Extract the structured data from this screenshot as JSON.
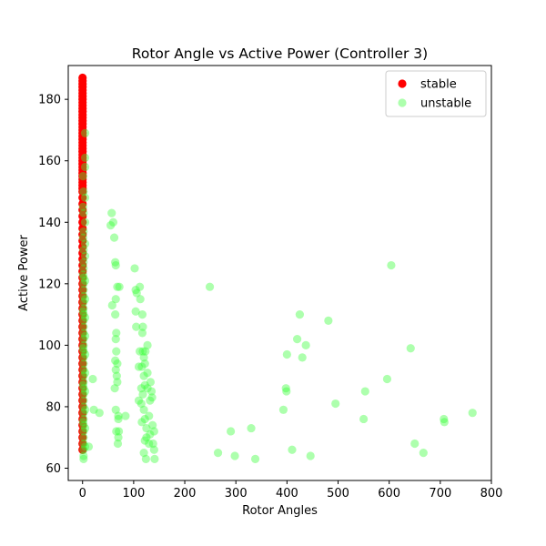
{
  "chart_data": {
    "type": "scatter",
    "title": "Rotor Angle vs Active Power (Controller 3)",
    "xlabel": "Rotor Angles",
    "ylabel": "Active Power",
    "xlim": [
      -28,
      800
    ],
    "ylim": [
      56,
      191
    ],
    "xticks": [
      0,
      100,
      200,
      300,
      400,
      500,
      600,
      700,
      800
    ],
    "yticks": [
      60,
      80,
      100,
      120,
      140,
      160,
      180
    ],
    "grid": false,
    "legend_position": "top-right",
    "series": [
      {
        "name": "stable",
        "color": "#ff0000",
        "alpha": 1.0,
        "points": [
          [
            0,
            187
          ],
          [
            0,
            186
          ],
          [
            0,
            185
          ],
          [
            0,
            184
          ],
          [
            0,
            183
          ],
          [
            0,
            182
          ],
          [
            0,
            181
          ],
          [
            0,
            180
          ],
          [
            0,
            179
          ],
          [
            0,
            178
          ],
          [
            0,
            177
          ],
          [
            0,
            176
          ],
          [
            0,
            175
          ],
          [
            0,
            174
          ],
          [
            0,
            173
          ],
          [
            0,
            172
          ],
          [
            0,
            171
          ],
          [
            0,
            170
          ],
          [
            0,
            169
          ],
          [
            0,
            168
          ],
          [
            0,
            167
          ],
          [
            0,
            166
          ],
          [
            0,
            165
          ],
          [
            0,
            164
          ],
          [
            0,
            163
          ],
          [
            0,
            162
          ],
          [
            0,
            161
          ],
          [
            0,
            160
          ],
          [
            0,
            159
          ],
          [
            0,
            158
          ],
          [
            0,
            157
          ],
          [
            0,
            156
          ],
          [
            0,
            155
          ],
          [
            0,
            154
          ],
          [
            0,
            153
          ],
          [
            0,
            152
          ],
          [
            0,
            151
          ],
          [
            0,
            150
          ],
          [
            0,
            148
          ],
          [
            0,
            146
          ],
          [
            0,
            144
          ],
          [
            0,
            142
          ],
          [
            0,
            140
          ],
          [
            0,
            138
          ],
          [
            0,
            136
          ],
          [
            0,
            134
          ],
          [
            0,
            132
          ],
          [
            0,
            130
          ],
          [
            0,
            128
          ],
          [
            0,
            126
          ],
          [
            0,
            124
          ],
          [
            0,
            122
          ],
          [
            0,
            120
          ],
          [
            0,
            118
          ],
          [
            0,
            116
          ],
          [
            0,
            114
          ],
          [
            0,
            112
          ],
          [
            0,
            110
          ],
          [
            0,
            108
          ],
          [
            0,
            106
          ],
          [
            0,
            104
          ],
          [
            0,
            102
          ],
          [
            0,
            100
          ],
          [
            0,
            98
          ],
          [
            0,
            96
          ],
          [
            0,
            94
          ],
          [
            0,
            92
          ],
          [
            0,
            90
          ],
          [
            0,
            88
          ],
          [
            0,
            86
          ],
          [
            0,
            84
          ],
          [
            0,
            82
          ],
          [
            0,
            80
          ],
          [
            0,
            78
          ],
          [
            0,
            76
          ],
          [
            0,
            74
          ],
          [
            0,
            72
          ],
          [
            0,
            70
          ],
          [
            0,
            68
          ],
          [
            0,
            66
          ]
        ]
      },
      {
        "name": "unstable",
        "color": "#33ff33",
        "alpha": 0.4,
        "points": [
          [
            2,
            150
          ],
          [
            2,
            143
          ],
          [
            2,
            137
          ],
          [
            2,
            131
          ],
          [
            2,
            127
          ],
          [
            2,
            125
          ],
          [
            2,
            122
          ],
          [
            2,
            120
          ],
          [
            2,
            118
          ],
          [
            2,
            116
          ],
          [
            2,
            114
          ],
          [
            2,
            112
          ],
          [
            2,
            110
          ],
          [
            2,
            108
          ],
          [
            2,
            106
          ],
          [
            2,
            104
          ],
          [
            2,
            102
          ],
          [
            2,
            100
          ],
          [
            2,
            98
          ],
          [
            2,
            96
          ],
          [
            2,
            94
          ],
          [
            2,
            92
          ],
          [
            2,
            90
          ],
          [
            2,
            88
          ],
          [
            2,
            86
          ],
          [
            2,
            84
          ],
          [
            2,
            82
          ],
          [
            2,
            80
          ],
          [
            2,
            78
          ],
          [
            2,
            76
          ],
          [
            2,
            74
          ],
          [
            2,
            72
          ],
          [
            2,
            70
          ],
          [
            2,
            68
          ],
          [
            2,
            66
          ],
          [
            2,
            64
          ],
          [
            2,
            63
          ],
          [
            5,
            169
          ],
          [
            5,
            161
          ],
          [
            5,
            158
          ],
          [
            5,
            148
          ],
          [
            5,
            140
          ],
          [
            5,
            133
          ],
          [
            5,
            129
          ],
          [
            5,
            121
          ],
          [
            5,
            115
          ],
          [
            5,
            109
          ],
          [
            5,
            103
          ],
          [
            5,
            97
          ],
          [
            5,
            91
          ],
          [
            5,
            85
          ],
          [
            5,
            79
          ],
          [
            5,
            73
          ],
          [
            5,
            67
          ],
          [
            1,
            155
          ],
          [
            1,
            145
          ],
          [
            1,
            135
          ],
          [
            1,
            123
          ],
          [
            1,
            111
          ],
          [
            1,
            99
          ],
          [
            1,
            87
          ],
          [
            1,
            75
          ],
          [
            12,
            67
          ],
          [
            20,
            89
          ],
          [
            22,
            79
          ],
          [
            33,
            78
          ],
          [
            57,
            143
          ],
          [
            55,
            139
          ],
          [
            60,
            140
          ],
          [
            62,
            135
          ],
          [
            64,
            127
          ],
          [
            65,
            126
          ],
          [
            68,
            119
          ],
          [
            72,
            119
          ],
          [
            58,
            113
          ],
          [
            65,
            115
          ],
          [
            64,
            110
          ],
          [
            66,
            104
          ],
          [
            65,
            102
          ],
          [
            66,
            98
          ],
          [
            64,
            95
          ],
          [
            68,
            94
          ],
          [
            65,
            92
          ],
          [
            67,
            90
          ],
          [
            68,
            88
          ],
          [
            63,
            86
          ],
          [
            65,
            79
          ],
          [
            70,
            77
          ],
          [
            70,
            76
          ],
          [
            66,
            72
          ],
          [
            71,
            72
          ],
          [
            70,
            70
          ],
          [
            69,
            68
          ],
          [
            84,
            77
          ],
          [
            102,
            125
          ],
          [
            104,
            118
          ],
          [
            106,
            117
          ],
          [
            112,
            119
          ],
          [
            113,
            115
          ],
          [
            104,
            111
          ],
          [
            117,
            110
          ],
          [
            105,
            106
          ],
          [
            118,
            106
          ],
          [
            117,
            104
          ],
          [
            112,
            98
          ],
          [
            118,
            98
          ],
          [
            123,
            98
          ],
          [
            127,
            100
          ],
          [
            110,
            93
          ],
          [
            116,
            93
          ],
          [
            120,
            96
          ],
          [
            122,
            94
          ],
          [
            127,
            91
          ],
          [
            120,
            90
          ],
          [
            110,
            82
          ],
          [
            118,
            84
          ],
          [
            115,
            86
          ],
          [
            122,
            87
          ],
          [
            127,
            86
          ],
          [
            115,
            81
          ],
          [
            120,
            79
          ],
          [
            122,
            76
          ],
          [
            130,
            77
          ],
          [
            116,
            75
          ],
          [
            125,
            73
          ],
          [
            132,
            71
          ],
          [
            122,
            69
          ],
          [
            125,
            70
          ],
          [
            130,
            68
          ],
          [
            140,
            72
          ],
          [
            137,
            74
          ],
          [
            120,
            65
          ],
          [
            124,
            63
          ],
          [
            140,
            66
          ],
          [
            138,
            68
          ],
          [
            141,
            63
          ],
          [
            132,
            82
          ],
          [
            135,
            85
          ],
          [
            133,
            88
          ],
          [
            136,
            83
          ],
          [
            249,
            119
          ],
          [
            265,
            65
          ],
          [
            290,
            72
          ],
          [
            298,
            64
          ],
          [
            330,
            73
          ],
          [
            338,
            63
          ],
          [
            393,
            79
          ],
          [
            398,
            86
          ],
          [
            399,
            85
          ],
          [
            400,
            97
          ],
          [
            410,
            66
          ],
          [
            420,
            102
          ],
          [
            425,
            110
          ],
          [
            430,
            96
          ],
          [
            437,
            100
          ],
          [
            446,
            64
          ],
          [
            481,
            108
          ],
          [
            495,
            81
          ],
          [
            550,
            76
          ],
          [
            553,
            85
          ],
          [
            596,
            89
          ],
          [
            604,
            126
          ],
          [
            642,
            99
          ],
          [
            650,
            68
          ],
          [
            667,
            65
          ],
          [
            707,
            76
          ],
          [
            708,
            75
          ],
          [
            763,
            78
          ]
        ]
      }
    ]
  }
}
